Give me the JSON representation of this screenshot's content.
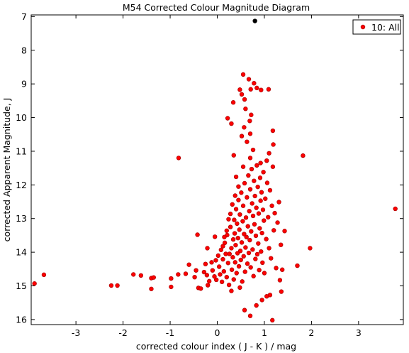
{
  "chart_data": {
    "type": "scatter",
    "title": "M54 Corrected Colour Magnitude Diagram",
    "xlabel": "corrected colour index ( J - K ) / mag",
    "ylabel": "corrected Apparent Magnitude, J",
    "xlim": [
      -3.95,
      3.95
    ],
    "ylim": [
      16.15,
      6.95
    ],
    "y_inverted": true,
    "grid": false,
    "legend_position": "top-right",
    "xticks": [
      -3,
      -2,
      -1,
      0,
      1,
      2,
      3
    ],
    "yticks": [
      7,
      8,
      9,
      10,
      11,
      12,
      13,
      14,
      15,
      16
    ],
    "series": [
      {
        "name": "10: All",
        "color": "#ff0000",
        "stroke": "#b00000",
        "points": [
          [
            -3.88,
            14.93
          ],
          [
            -3.68,
            14.67
          ],
          [
            -2.25,
            14.99
          ],
          [
            -2.12,
            14.99
          ],
          [
            -1.78,
            14.66
          ],
          [
            -1.62,
            14.69
          ],
          [
            -1.4,
            14.77
          ],
          [
            -1.35,
            14.75
          ],
          [
            -1.4,
            15.09
          ],
          [
            -0.98,
            14.78
          ],
          [
            -0.98,
            15.03
          ],
          [
            -0.83,
            14.66
          ],
          [
            -0.67,
            14.64
          ],
          [
            -0.6,
            14.37
          ],
          [
            -0.82,
            11.2
          ],
          [
            -0.42,
            13.48
          ],
          [
            -0.21,
            13.88
          ],
          [
            -0.05,
            13.54
          ],
          [
            -0.45,
            14.54
          ],
          [
            -0.48,
            14.74
          ],
          [
            -0.4,
            15.06
          ],
          [
            -0.35,
            15.08
          ],
          [
            -0.28,
            14.59
          ],
          [
            -0.25,
            14.35
          ],
          [
            -0.22,
            14.68
          ],
          [
            -0.2,
            14.98
          ],
          [
            -0.17,
            14.86
          ],
          [
            -0.12,
            14.3
          ],
          [
            -0.1,
            14.54
          ],
          [
            -0.06,
            14.72
          ],
          [
            -0.03,
            14.24
          ],
          [
            -0.02,
            14.82
          ],
          [
            0.02,
            14.1
          ],
          [
            0.04,
            14.43
          ],
          [
            0.06,
            14.66
          ],
          [
            0.08,
            13.93
          ],
          [
            0.1,
            14.88
          ],
          [
            0.12,
            14.21
          ],
          [
            0.14,
            14.57
          ],
          [
            0.16,
            13.72
          ],
          [
            0.18,
            14.05
          ],
          [
            0.2,
            14.74
          ],
          [
            0.21,
            13.49
          ],
          [
            0.23,
            14.32
          ],
          [
            0.25,
            14.97
          ],
          [
            0.26,
            14.05
          ],
          [
            0.28,
            13.25
          ],
          [
            0.3,
            13.88
          ],
          [
            0.31,
            14.52
          ],
          [
            0.33,
            14.15
          ],
          [
            0.34,
            13.62
          ],
          [
            0.35,
            14.81
          ],
          [
            0.36,
            13.04
          ],
          [
            0.37,
            13.44
          ],
          [
            0.38,
            14.3
          ],
          [
            0.39,
            13.79
          ],
          [
            0.4,
            12.72
          ],
          [
            0.41,
            14.62
          ],
          [
            0.42,
            13.15
          ],
          [
            0.43,
            14.03
          ],
          [
            0.44,
            13.58
          ],
          [
            0.45,
            12.45
          ],
          [
            0.46,
            14.42
          ],
          [
            0.47,
            13.33
          ],
          [
            0.48,
            12.88
          ],
          [
            0.49,
            13.96
          ],
          [
            0.5,
            14.23
          ],
          [
            0.51,
            12.23
          ],
          [
            0.52,
            13.71
          ],
          [
            0.53,
            14.87
          ],
          [
            0.54,
            13.08
          ],
          [
            0.55,
            12.62
          ],
          [
            0.56,
            14.12
          ],
          [
            0.57,
            13.46
          ],
          [
            0.58,
            11.95
          ],
          [
            0.59,
            14.58
          ],
          [
            0.6,
            13.86
          ],
          [
            0.61,
            12.97
          ],
          [
            0.62,
            13.55
          ],
          [
            0.63,
            12.37
          ],
          [
            0.64,
            14.34
          ],
          [
            0.65,
            13.23
          ],
          [
            0.66,
            11.72
          ],
          [
            0.67,
            14.02
          ],
          [
            0.68,
            12.78
          ],
          [
            0.69,
            13.64
          ],
          [
            0.7,
            12.13
          ],
          [
            0.71,
            14.45
          ],
          [
            0.72,
            13.38
          ],
          [
            0.73,
            11.53
          ],
          [
            0.74,
            12.55
          ],
          [
            0.75,
            13.92
          ],
          [
            0.76,
            12.92
          ],
          [
            0.77,
            14.71
          ],
          [
            0.78,
            11.88
          ],
          [
            0.79,
            13.17
          ],
          [
            0.8,
            12.33
          ],
          [
            0.81,
            14.2
          ],
          [
            0.82,
            13.51
          ],
          [
            0.83,
            12.68
          ],
          [
            0.84,
            11.42
          ],
          [
            0.85,
            14.06
          ],
          [
            0.86,
            12.06
          ],
          [
            0.87,
            13.74
          ],
          [
            0.88,
            12.85
          ],
          [
            0.89,
            14.53
          ],
          [
            0.9,
            13.29
          ],
          [
            0.91,
            11.79
          ],
          [
            0.92,
            12.47
          ],
          [
            0.93,
            13.98
          ],
          [
            0.94,
            12.22
          ],
          [
            0.95,
            13.43
          ],
          [
            0.96,
            14.31
          ],
          [
            0.97,
            12.74
          ],
          [
            0.98,
            11.62
          ],
          [
            0.99,
            13.06
          ],
          [
            1.0,
            14.62
          ],
          [
            1.02,
            12.41
          ],
          [
            1.04,
            13.61
          ],
          [
            1.06,
            11.94
          ],
          [
            1.08,
            12.96
          ],
          [
            1.1,
            13.88
          ],
          [
            1.12,
            12.16
          ],
          [
            1.14,
            14.18
          ],
          [
            1.16,
            12.62
          ],
          [
            1.18,
            11.46
          ],
          [
            1.2,
            13.35
          ],
          [
            1.22,
            12.84
          ],
          [
            1.25,
            14.47
          ],
          [
            1.28,
            13.12
          ],
          [
            1.31,
            12.51
          ],
          [
            1.35,
            13.78
          ],
          [
            1.05,
            11.28
          ],
          [
            1.1,
            11.06
          ],
          [
            0.92,
            11.35
          ],
          [
            0.7,
            11.2
          ],
          [
            0.55,
            11.46
          ],
          [
            0.35,
            11.12
          ],
          [
            0.4,
            11.76
          ],
          [
            0.45,
            12.05
          ],
          [
            0.38,
            12.32
          ],
          [
            0.32,
            12.58
          ],
          [
            0.28,
            12.86
          ],
          [
            0.24,
            13.02
          ],
          [
            0.2,
            13.36
          ],
          [
            0.15,
            13.55
          ],
          [
            0.12,
            13.82
          ],
          [
            0.55,
            8.72
          ],
          [
            0.67,
            8.86
          ],
          [
            0.78,
            8.98
          ],
          [
            0.84,
            9.12
          ],
          [
            0.48,
            9.17
          ],
          [
            0.52,
            9.31
          ],
          [
            0.58,
            9.46
          ],
          [
            0.71,
            9.16
          ],
          [
            0.93,
            9.18
          ],
          [
            1.09,
            9.16
          ],
          [
            0.34,
            9.55
          ],
          [
            0.6,
            9.74
          ],
          [
            0.72,
            9.92
          ],
          [
            0.69,
            10.1
          ],
          [
            0.22,
            10.02
          ],
          [
            0.3,
            10.18
          ],
          [
            0.57,
            10.29
          ],
          [
            0.7,
            10.48
          ],
          [
            0.63,
            10.72
          ],
          [
            0.76,
            10.96
          ],
          [
            1.18,
            10.39
          ],
          [
            1.19,
            10.8
          ],
          [
            0.52,
            10.55
          ],
          [
            1.82,
            11.13
          ],
          [
            3.78,
            12.71
          ],
          [
            1.43,
            13.37
          ],
          [
            1.97,
            13.88
          ],
          [
            1.7,
            14.4
          ],
          [
            1.38,
            14.52
          ],
          [
            1.33,
            14.83
          ],
          [
            1.36,
            15.17
          ],
          [
            1.05,
            15.31
          ],
          [
            0.95,
            15.42
          ],
          [
            0.58,
            15.72
          ],
          [
            0.7,
            15.89
          ],
          [
            1.12,
            15.27
          ],
          [
            1.17,
            16.02
          ],
          [
            0.83,
            15.58
          ],
          [
            0.48,
            15.05
          ],
          [
            0.3,
            15.15
          ]
        ]
      },
      {
        "name": "",
        "color": "#000000",
        "stroke": "#000000",
        "points": [
          [
            0.8,
            7.13
          ]
        ]
      }
    ]
  }
}
